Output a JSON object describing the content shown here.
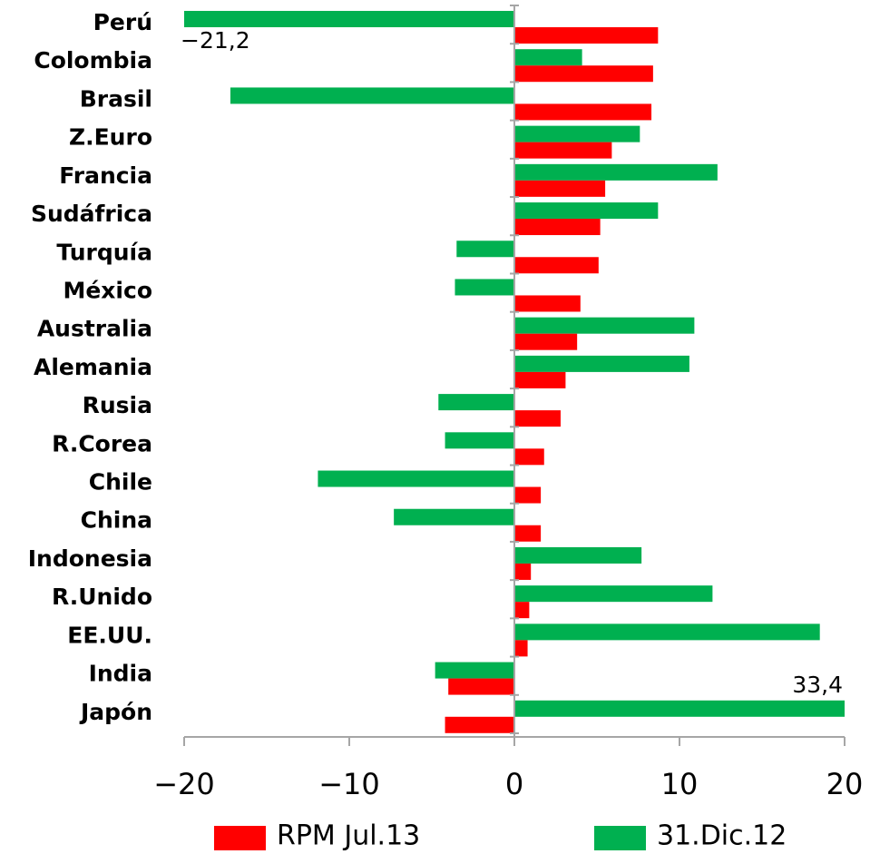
{
  "chart_data": {
    "type": "hbar",
    "categories": [
      "Perú",
      "Colombia",
      "Brasil",
      "Z.Euro",
      "Francia",
      "Sudáfrica",
      "Turquía",
      "México",
      "Australia",
      "Alemania",
      "Rusia",
      "R.Corea",
      "Chile",
      "China",
      "Indonesia",
      "R.Unido",
      "EE.UU.",
      "India",
      "Japón"
    ],
    "series": [
      {
        "name": "31.Dic.12",
        "color": "#00b050",
        "values": [
          -21.2,
          4.1,
          -17.2,
          7.6,
          12.3,
          8.7,
          -3.5,
          -3.6,
          10.9,
          10.6,
          -4.6,
          -4.2,
          -11.9,
          -7.3,
          7.7,
          12.0,
          18.5,
          -4.8,
          33.4
        ],
        "value_labels": [
          "−21,2",
          null,
          null,
          null,
          null,
          null,
          null,
          null,
          null,
          null,
          null,
          null,
          null,
          null,
          null,
          null,
          null,
          null,
          "33,4"
        ]
      },
      {
        "name": "RPM Jul.13",
        "color": "#ff0000",
        "values": [
          8.7,
          8.4,
          8.3,
          5.9,
          5.5,
          5.2,
          5.1,
          4.0,
          3.8,
          3.1,
          2.8,
          1.8,
          1.6,
          1.6,
          1.0,
          0.9,
          0.8,
          -4.0,
          -4.2
        ]
      }
    ],
    "xlim": [
      -20,
      20
    ],
    "xticks": [
      {
        "value": -20,
        "label": "−20"
      },
      {
        "value": -10,
        "label": "−10"
      },
      0,
      10,
      20
    ]
  }
}
